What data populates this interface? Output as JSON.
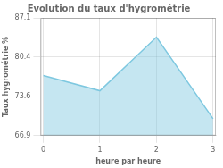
{
  "chart_data": {
    "type": "area",
    "title": "Evolution du taux d'hygrométrie",
    "xlabel": "heure par heure",
    "ylabel": "Taux hygrométrie %",
    "x": [
      0,
      1,
      2,
      3
    ],
    "values": [
      77.2,
      74.6,
      83.8,
      69.8
    ],
    "color": "#7ec8e0",
    "xlim": [
      -0.05,
      3.05
    ],
    "ylim": [
      66.9,
      87.1
    ],
    "xticks": [
      0,
      1,
      2,
      3
    ],
    "yticks": [
      66.9,
      73.6,
      80.4,
      87.1
    ],
    "grid": true
  }
}
